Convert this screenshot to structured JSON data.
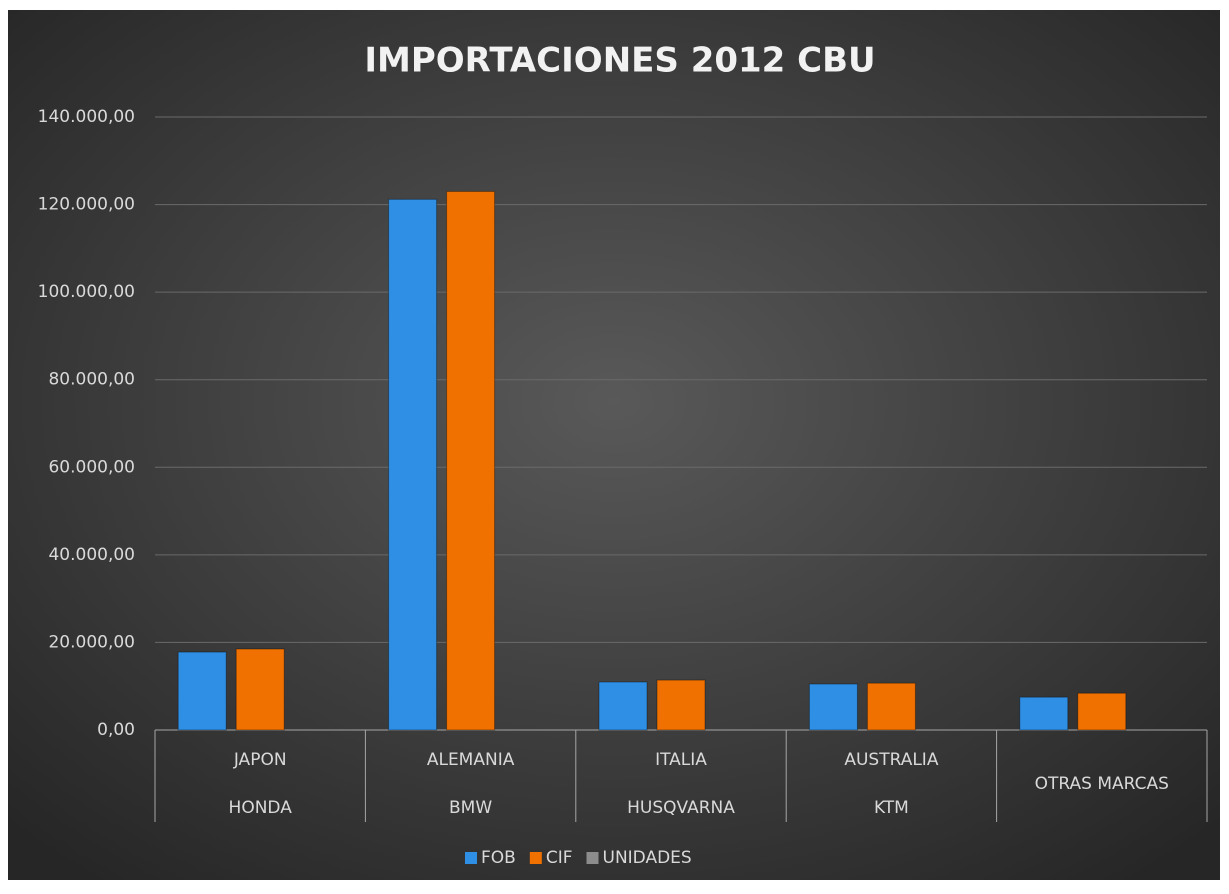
{
  "chart_data": {
    "type": "bar",
    "title": "IMPORTACIONES 2012 CBU",
    "categories": [
      [
        "JAPON",
        "HONDA"
      ],
      [
        "ALEMANIA",
        "BMW"
      ],
      [
        "ITALIA",
        "HUSQVARNA"
      ],
      [
        "AUSTRALIA",
        "KTM"
      ],
      [
        null,
        "OTRAS MARCAS"
      ]
    ],
    "series": [
      {
        "name": "FOB",
        "color": "#2f8fe5",
        "values": [
          17800,
          121200,
          10960,
          10500,
          7500
        ]
      },
      {
        "name": "CIF",
        "color": "#f07000",
        "values": [
          18500,
          123000,
          11400,
          10700,
          8400
        ]
      },
      {
        "name": "UNIDADES",
        "color": "#8c8c8c",
        "values": [
          0,
          0,
          0,
          0,
          0
        ]
      }
    ],
    "ylim": [
      0,
      140000
    ],
    "yticks": [
      {
        "value": 0,
        "label": "0,00"
      },
      {
        "value": 20000,
        "label": "20.000,00"
      },
      {
        "value": 40000,
        "label": "40.000,00"
      },
      {
        "value": 60000,
        "label": "60.000,00"
      },
      {
        "value": 80000,
        "label": "80.000,00"
      },
      {
        "value": 100000,
        "label": "100.000,00"
      },
      {
        "value": 120000,
        "label": "120.000,00"
      },
      {
        "value": 140000,
        "label": "140.000,00"
      }
    ],
    "grid": true,
    "legend": "bottom"
  }
}
